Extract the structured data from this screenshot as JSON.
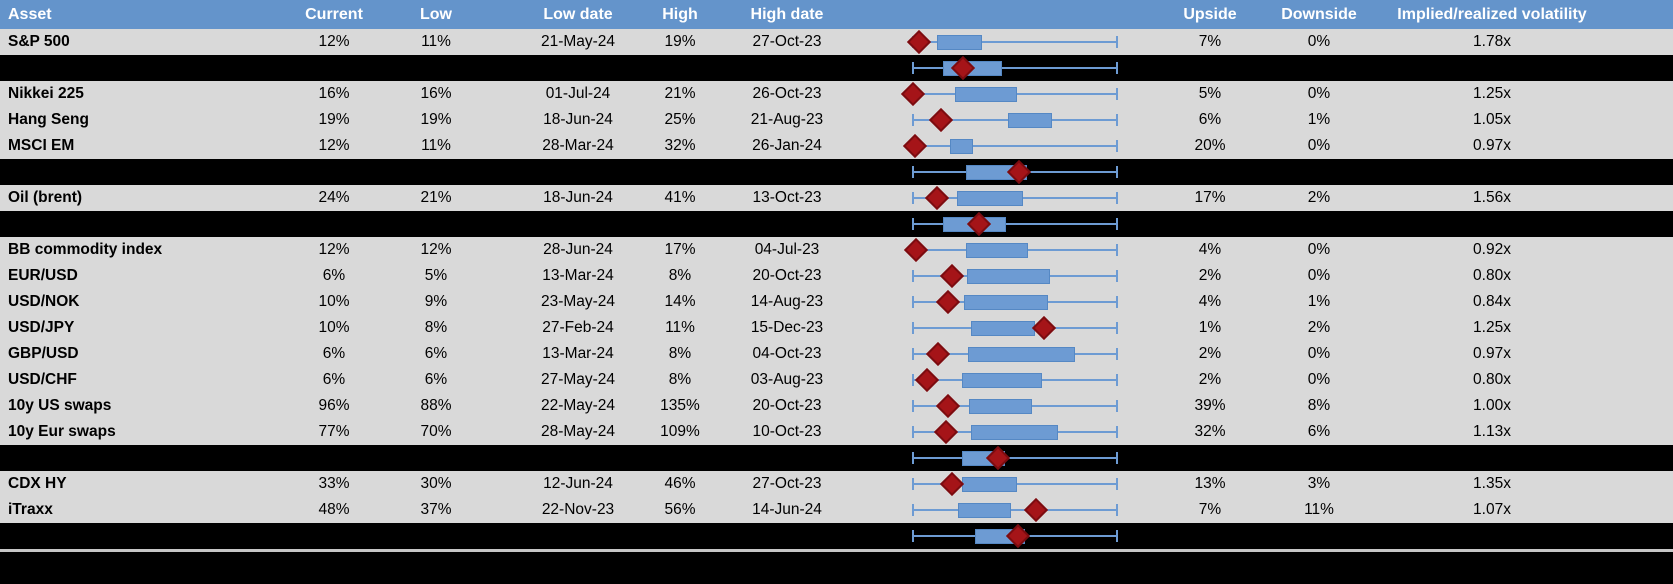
{
  "chart_data": {
    "type": "table",
    "columns": [
      "Asset",
      "Current",
      "Low",
      "Low date",
      "High",
      "High date",
      "",
      "Upside",
      "Downside",
      "Implied/realized volatility"
    ],
    "boxplot_legend": {
      "marker_diamond": "current implied volatility",
      "whisker": "low-high range",
      "box": "middle range",
      "scale_note": "positions normalized 0-1 across the whisker span (no axis labels visible)"
    },
    "rows": [
      {
        "kind": "data",
        "asset": "S&P 500",
        "current": "12%",
        "low": "11%",
        "low_date": "21-May-24",
        "high": "19%",
        "high_date": "27-Oct-23",
        "upside": "7%",
        "downside": "0%",
        "impl_real": "1.78x",
        "chart": {
          "whisker": [
            0,
            1
          ],
          "box": [
            0.12,
            0.34
          ],
          "diamond": 0.03
        }
      },
      {
        "kind": "separator",
        "chart": {
          "whisker": [
            0,
            1
          ],
          "box": [
            0.147,
            0.436
          ],
          "diamond": 0.245
        }
      },
      {
        "kind": "data",
        "asset": "Nikkei 225",
        "current": "16%",
        "low": "16%",
        "low_date": "01-Jul-24",
        "high": "21%",
        "high_date": "26-Oct-23",
        "upside": "5%",
        "downside": "0%",
        "impl_real": "1.25x",
        "chart": {
          "whisker": [
            0,
            1
          ],
          "box": [
            0.206,
            0.51
          ],
          "diamond": 0.0
        }
      },
      {
        "kind": "data",
        "asset": "Hang Seng",
        "current": "19%",
        "low": "19%",
        "low_date": "18-Jun-24",
        "high": "25%",
        "high_date": "21-Aug-23",
        "upside": "6%",
        "downside": "1%",
        "impl_real": "1.05x",
        "chart": {
          "whisker": [
            0,
            1
          ],
          "box": [
            0.466,
            0.681
          ],
          "diamond": 0.137
        }
      },
      {
        "kind": "data",
        "asset": "MSCI EM",
        "current": "12%",
        "low": "11%",
        "low_date": "28-Mar-24",
        "high": "32%",
        "high_date": "26-Jan-24",
        "upside": "20%",
        "downside": "0%",
        "impl_real": "0.97x",
        "chart": {
          "whisker": [
            0,
            1
          ],
          "box": [
            0.181,
            0.294
          ],
          "diamond": 0.01
        }
      },
      {
        "kind": "separator",
        "chart": {
          "whisker": [
            0,
            1
          ],
          "box": [
            0.26,
            0.559
          ],
          "diamond": 0.52
        }
      },
      {
        "kind": "data",
        "asset": "Oil (brent)",
        "current": "24%",
        "low": "21%",
        "low_date": "18-Jun-24",
        "high": "41%",
        "high_date": "13-Oct-23",
        "upside": "17%",
        "downside": "2%",
        "impl_real": "1.56x",
        "chart": {
          "whisker": [
            0,
            1
          ],
          "box": [
            0.216,
            0.539
          ],
          "diamond": 0.118
        }
      },
      {
        "kind": "separator",
        "chart": {
          "whisker": [
            0,
            1
          ],
          "box": [
            0.147,
            0.456
          ],
          "diamond": 0.324
        }
      },
      {
        "kind": "data",
        "asset": "BB commodity index",
        "current": "12%",
        "low": "12%",
        "low_date": "28-Jun-24",
        "high": "17%",
        "high_date": "04-Jul-23",
        "upside": "4%",
        "downside": "0%",
        "impl_real": "0.92x",
        "chart": {
          "whisker": [
            0,
            1
          ],
          "box": [
            0.26,
            0.564
          ],
          "diamond": 0.015
        }
      },
      {
        "kind": "data",
        "asset": "EUR/USD",
        "current": "6%",
        "low": "5%",
        "low_date": "13-Mar-24",
        "high": "8%",
        "high_date": "20-Oct-23",
        "upside": "2%",
        "downside": "0%",
        "impl_real": "0.80x",
        "chart": {
          "whisker": [
            0,
            1
          ],
          "box": [
            0.265,
            0.672
          ],
          "diamond": 0.191
        }
      },
      {
        "kind": "data",
        "asset": "USD/NOK",
        "current": "10%",
        "low": "9%",
        "low_date": "23-May-24",
        "high": "14%",
        "high_date": "14-Aug-23",
        "upside": "4%",
        "downside": "1%",
        "impl_real": "0.84x",
        "chart": {
          "whisker": [
            0,
            1
          ],
          "box": [
            0.25,
            0.662
          ],
          "diamond": 0.172
        }
      },
      {
        "kind": "data",
        "asset": "USD/JPY",
        "current": "10%",
        "low": "8%",
        "low_date": "27-Feb-24",
        "high": "11%",
        "high_date": "15-Dec-23",
        "upside": "1%",
        "downside": "2%",
        "impl_real": "1.25x",
        "chart": {
          "whisker": [
            0,
            1
          ],
          "box": [
            0.284,
            0.598
          ],
          "diamond": 0.642
        }
      },
      {
        "kind": "data",
        "asset": "GBP/USD",
        "current": "6%",
        "low": "6%",
        "low_date": "13-Mar-24",
        "high": "8%",
        "high_date": "04-Oct-23",
        "upside": "2%",
        "downside": "0%",
        "impl_real": "0.97x",
        "chart": {
          "whisker": [
            0,
            1
          ],
          "box": [
            0.27,
            0.794
          ],
          "diamond": 0.123
        }
      },
      {
        "kind": "data",
        "asset": "USD/CHF",
        "current": "6%",
        "low": "6%",
        "low_date": "27-May-24",
        "high": "8%",
        "high_date": "03-Aug-23",
        "upside": "2%",
        "downside": "0%",
        "impl_real": "0.80x",
        "chart": {
          "whisker": [
            0,
            1
          ],
          "box": [
            0.24,
            0.632
          ],
          "diamond": 0.069
        }
      },
      {
        "kind": "data",
        "asset": "10y US swaps",
        "current": "96%",
        "low": "88%",
        "low_date": "22-May-24",
        "high": "135%",
        "high_date": "20-Oct-23",
        "upside": "39%",
        "downside": "8%",
        "impl_real": "1.00x",
        "chart": {
          "whisker": [
            0,
            1
          ],
          "box": [
            0.275,
            0.583
          ],
          "diamond": 0.172
        }
      },
      {
        "kind": "data",
        "asset": "10y Eur swaps",
        "current": "77%",
        "low": "70%",
        "low_date": "28-May-24",
        "high": "109%",
        "high_date": "10-Oct-23",
        "upside": "32%",
        "downside": "6%",
        "impl_real": "1.13x",
        "chart": {
          "whisker": [
            0,
            1
          ],
          "box": [
            0.284,
            0.711
          ],
          "diamond": 0.162
        }
      },
      {
        "kind": "separator",
        "chart": {
          "whisker": [
            0,
            1
          ],
          "box": [
            0.24,
            0.451
          ],
          "diamond": 0.417
        }
      },
      {
        "kind": "data",
        "asset": "CDX HY",
        "current": "33%",
        "low": "30%",
        "low_date": "12-Jun-24",
        "high": "46%",
        "high_date": "27-Oct-23",
        "upside": "13%",
        "downside": "3%",
        "impl_real": "1.35x",
        "chart": {
          "whisker": [
            0,
            1
          ],
          "box": [
            0.24,
            0.51
          ],
          "diamond": 0.191
        }
      },
      {
        "kind": "data",
        "asset": "iTraxx",
        "current": "48%",
        "low": "37%",
        "low_date": "22-Nov-23",
        "high": "56%",
        "high_date": "14-Jun-24",
        "upside": "7%",
        "downside": "11%",
        "impl_real": "1.07x",
        "chart": {
          "whisker": [
            0,
            1
          ],
          "box": [
            0.221,
            0.48
          ],
          "diamond": 0.603
        }
      },
      {
        "kind": "separator",
        "chart": {
          "whisker": [
            0,
            1
          ],
          "box": [
            0.304,
            0.549
          ],
          "diamond": 0.515
        }
      }
    ]
  },
  "colors": {
    "header_bg": "#6494CB",
    "header_text": "#FFFFFF",
    "row_bg": "#D9D9D9",
    "separator_bg": "#000000",
    "box_fill": "#6D9BD3",
    "whisker": "#6D9BD3",
    "diamond_fill": "#A51418",
    "diamond_border": "#7C0C10",
    "text": "#000000"
  }
}
